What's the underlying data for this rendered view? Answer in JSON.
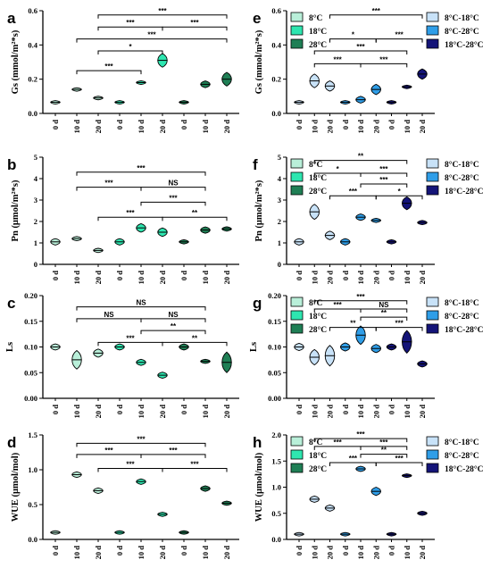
{
  "chart_data": [
    {
      "panel": "a",
      "type": "violin",
      "ylabel": "Gs (mmol/m²*s)",
      "ylim": [
        0,
        0.6
      ],
      "yticks": [
        "0.0",
        "0.2",
        "0.4",
        "0.6"
      ],
      "ytick_values": [
        0,
        0.2,
        0.4,
        0.6
      ],
      "xlabels": [
        "0 d",
        "10 d",
        "20 d",
        "0 d",
        "10 d",
        "20 d",
        "0 d",
        "10 d",
        "20 d"
      ],
      "legend": [
        {
          "name": "8°C",
          "color": "#b9efd9"
        },
        {
          "name": "18°C",
          "color": "#2ee6b0"
        },
        {
          "name": "28°C",
          "color": "#1f7f55"
        }
      ],
      "values": [
        0.065,
        0.14,
        0.09,
        0.065,
        0.18,
        0.31,
        0.065,
        0.17,
        0.2
      ],
      "spread": [
        0.01,
        0.01,
        0.01,
        0.01,
        0.01,
        0.04,
        0.01,
        0.02,
        0.04
      ],
      "colors": [
        "#b9efd9",
        "#b9efd9",
        "#b9efd9",
        "#2ee6b0",
        "#2ee6b0",
        "#2ee6b0",
        "#1f7f55",
        "#1f7f55",
        "#1f7f55"
      ],
      "brackets": [
        {
          "x1": 1,
          "x2": 4,
          "y": 0.25,
          "label": "***"
        },
        {
          "x1": 2,
          "x2": 5,
          "y": 0.365,
          "label": "*"
        },
        {
          "x1": 1,
          "x2": 8,
          "y": 0.435,
          "label": "***"
        },
        {
          "x1": 2,
          "x2": 5,
          "y": 0.505,
          "label": "***"
        },
        {
          "x1": 5,
          "x2": 8,
          "y": 0.505,
          "label": "***"
        },
        {
          "x1": 2,
          "x2": 8,
          "y": 0.575,
          "label": "***"
        }
      ]
    },
    {
      "panel": "e",
      "type": "violin",
      "ylabel": "Gs (mmol/m²*s)",
      "ylim": [
        0,
        0.6
      ],
      "yticks": [
        "0.0",
        "0.2",
        "0.4",
        "0.6"
      ],
      "ytick_values": [
        0,
        0.2,
        0.4,
        0.6
      ],
      "xlabels": [
        "0 d",
        "10 d",
        "20 d",
        "0 d",
        "10 d",
        "20 d",
        "0 d",
        "10 d",
        "20 d"
      ],
      "legend": [
        {
          "name": "8°C-18°C",
          "color": "#c8e2f8"
        },
        {
          "name": "8°C-28°C",
          "color": "#2f9ee8"
        },
        {
          "name": "18°C-28°C",
          "color": "#141478"
        }
      ],
      "values": [
        0.065,
        0.19,
        0.16,
        0.065,
        0.08,
        0.14,
        0.065,
        0.155,
        0.23
      ],
      "spread": [
        0.01,
        0.04,
        0.03,
        0.01,
        0.02,
        0.03,
        0.01,
        0.01,
        0.03
      ],
      "colors": [
        "#c8e2f8",
        "#c8e2f8",
        "#c8e2f8",
        "#2f9ee8",
        "#2f9ee8",
        "#2f9ee8",
        "#141478",
        "#141478",
        "#141478"
      ],
      "brackets": [
        {
          "x1": 1,
          "x2": 4,
          "y": 0.29,
          "label": "***"
        },
        {
          "x1": 4,
          "x2": 7,
          "y": 0.29,
          "label": "***"
        },
        {
          "x1": 1,
          "x2": 7,
          "y": 0.365,
          "label": "***"
        },
        {
          "x1": 2,
          "x2": 5,
          "y": 0.435,
          "label": "*"
        },
        {
          "x1": 5,
          "x2": 8,
          "y": 0.435,
          "label": "***"
        },
        {
          "x1": 2,
          "x2": 8,
          "y": 0.575,
          "label": "***"
        }
      ]
    },
    {
      "panel": "b",
      "type": "violin",
      "ylabel": "Pn (μmol/m²*s)",
      "ylim": [
        0,
        5
      ],
      "yticks": [
        "0",
        "1",
        "2",
        "3",
        "4",
        "5"
      ],
      "ytick_values": [
        0,
        1,
        2,
        3,
        4,
        5
      ],
      "xlabels": [
        "0 d",
        "10 d",
        "20 d",
        "0 d",
        "10 d",
        "20 d",
        "0 d",
        "10 d",
        "20 d"
      ],
      "legend": [
        {
          "name": "8°C",
          "color": "#b9efd9"
        },
        {
          "name": "18°C",
          "color": "#2ee6b0"
        },
        {
          "name": "28°C",
          "color": "#1f7f55"
        }
      ],
      "values": [
        1.05,
        1.2,
        0.65,
        1.05,
        1.7,
        1.5,
        1.05,
        1.6,
        1.65
      ],
      "spread": [
        0.15,
        0.1,
        0.1,
        0.15,
        0.2,
        0.2,
        0.1,
        0.15,
        0.1
      ],
      "colors": [
        "#b9efd9",
        "#b9efd9",
        "#b9efd9",
        "#2ee6b0",
        "#2ee6b0",
        "#2ee6b0",
        "#1f7f55",
        "#1f7f55",
        "#1f7f55"
      ],
      "brackets": [
        {
          "x1": 2,
          "x2": 5,
          "y": 2.2,
          "label": "***"
        },
        {
          "x1": 5,
          "x2": 8,
          "y": 2.2,
          "label": "**"
        },
        {
          "x1": 4,
          "x2": 7,
          "y": 2.9,
          "label": "***"
        },
        {
          "x1": 1,
          "x2": 4,
          "y": 3.6,
          "label": "***"
        },
        {
          "x1": 4,
          "x2": 7,
          "y": 3.6,
          "label": "NS"
        },
        {
          "x1": 1,
          "x2": 7,
          "y": 4.3,
          "label": "***"
        }
      ]
    },
    {
      "panel": "f",
      "type": "violin",
      "ylabel": "Pn (μmol/m²*s)",
      "ylim": [
        0,
        5
      ],
      "yticks": [
        "0",
        "1",
        "2",
        "3",
        "4",
        "5"
      ],
      "ytick_values": [
        0,
        1,
        2,
        3,
        4,
        5
      ],
      "xlabels": [
        "0 d",
        "10 d",
        "20 d",
        "0 d",
        "10 d",
        "20 d",
        "0 d",
        "10 d",
        "20 d"
      ],
      "legend": [
        {
          "name": "8°C-18°C",
          "color": "#c8e2f8"
        },
        {
          "name": "8°C-28°C",
          "color": "#2f9ee8"
        },
        {
          "name": "18°C-28°C",
          "color": "#141478"
        }
      ],
      "values": [
        1.05,
        2.45,
        1.35,
        1.05,
        2.2,
        2.05,
        1.05,
        2.85,
        1.95
      ],
      "spread": [
        0.15,
        0.35,
        0.2,
        0.15,
        0.15,
        0.1,
        0.1,
        0.3,
        0.1
      ],
      "colors": [
        "#c8e2f8",
        "#c8e2f8",
        "#c8e2f8",
        "#2f9ee8",
        "#2f9ee8",
        "#2f9ee8",
        "#141478",
        "#141478",
        "#141478"
      ],
      "brackets": [
        {
          "x1": 2,
          "x2": 5,
          "y": 3.2,
          "label": "***"
        },
        {
          "x1": 5,
          "x2": 8,
          "y": 3.2,
          "label": "*"
        },
        {
          "x1": 4,
          "x2": 7,
          "y": 3.75,
          "label": "***"
        },
        {
          "x1": 1,
          "x2": 4,
          "y": 4.25,
          "label": "*"
        },
        {
          "x1": 4,
          "x2": 7,
          "y": 4.25,
          "label": "***"
        },
        {
          "x1": 1,
          "x2": 7,
          "y": 4.85,
          "label": "**"
        }
      ]
    },
    {
      "panel": "c",
      "type": "violin",
      "ylabel": "Ls",
      "ylim": [
        0,
        0.2
      ],
      "yticks": [
        "0.00",
        "0.05",
        "0.10",
        "0.15",
        "0.20"
      ],
      "ytick_values": [
        0,
        0.05,
        0.1,
        0.15,
        0.2
      ],
      "xlabels": [
        "0 d",
        "10 d",
        "20 d",
        "0 d",
        "10 d",
        "20 d",
        "0 d",
        "10 d",
        "20 d"
      ],
      "legend": [
        {
          "name": "8°C",
          "color": "#b9efd9"
        },
        {
          "name": "18°C",
          "color": "#2ee6b0"
        },
        {
          "name": "28°C",
          "color": "#1f7f55"
        }
      ],
      "values": [
        0.1,
        0.075,
        0.088,
        0.1,
        0.07,
        0.045,
        0.1,
        0.072,
        0.07
      ],
      "spread": [
        0.006,
        0.018,
        0.008,
        0.006,
        0.006,
        0.006,
        0.006,
        0.004,
        0.02
      ],
      "colors": [
        "#b9efd9",
        "#b9efd9",
        "#b9efd9",
        "#2ee6b0",
        "#2ee6b0",
        "#2ee6b0",
        "#1f7f55",
        "#1f7f55",
        "#1f7f55"
      ],
      "brackets": [
        {
          "x1": 2,
          "x2": 5,
          "y": 0.109,
          "label": "***"
        },
        {
          "x1": 5,
          "x2": 8,
          "y": 0.109,
          "label": "**"
        },
        {
          "x1": 4,
          "x2": 7,
          "y": 0.132,
          "label": "**"
        },
        {
          "x1": 1,
          "x2": 4,
          "y": 0.155,
          "label": "NS"
        },
        {
          "x1": 4,
          "x2": 7,
          "y": 0.155,
          "label": "NS"
        },
        {
          "x1": 1,
          "x2": 7,
          "y": 0.178,
          "label": "NS"
        }
      ]
    },
    {
      "panel": "g",
      "type": "violin",
      "ylabel": "Ls",
      "ylim": [
        0,
        0.2
      ],
      "yticks": [
        "0.00",
        "0.05",
        "0.10",
        "0.15",
        "0.20"
      ],
      "ytick_values": [
        0,
        0.05,
        0.1,
        0.15,
        0.2
      ],
      "xlabels": [
        "0 d",
        "10 d",
        "20 d",
        "0 d",
        "10 d",
        "20 d",
        "0 d",
        "10 d",
        "20 d"
      ],
      "legend": [
        {
          "name": "8°C-18°C",
          "color": "#c8e2f8"
        },
        {
          "name": "8°C-28°C",
          "color": "#2f9ee8"
        },
        {
          "name": "18°C-28°C",
          "color": "#141478"
        }
      ],
      "values": [
        0.1,
        0.08,
        0.083,
        0.1,
        0.123,
        0.097,
        0.1,
        0.11,
        0.067
      ],
      "spread": [
        0.007,
        0.015,
        0.02,
        0.008,
        0.018,
        0.008,
        0.006,
        0.022,
        0.006
      ],
      "colors": [
        "#c8e2f8",
        "#c8e2f8",
        "#c8e2f8",
        "#2f9ee8",
        "#2f9ee8",
        "#2f9ee8",
        "#141478",
        "#141478",
        "#141478"
      ],
      "brackets": [
        {
          "x1": 2,
          "x2": 5,
          "y": 0.138,
          "label": "**"
        },
        {
          "x1": 5,
          "x2": 8,
          "y": 0.138,
          "label": "***"
        },
        {
          "x1": 4,
          "x2": 7,
          "y": 0.158,
          "label": "**"
        },
        {
          "x1": 1,
          "x2": 4,
          "y": 0.174,
          "label": "***"
        },
        {
          "x1": 4,
          "x2": 7,
          "y": 0.174,
          "label": "NS"
        },
        {
          "x1": 1,
          "x2": 7,
          "y": 0.19,
          "label": "***"
        }
      ]
    },
    {
      "panel": "d",
      "type": "violin",
      "ylabel": "WUE (μmol/mol)",
      "ylim": [
        0,
        1.5
      ],
      "yticks": [
        "0.0",
        "0.5",
        "1.0",
        "1.5"
      ],
      "ytick_values": [
        0,
        0.5,
        1,
        1.5
      ],
      "xlabels": [
        "0 d",
        "10 d",
        "20 d",
        "0 d",
        "10 d",
        "20 d",
        "0 d",
        "10 d",
        "20 d"
      ],
      "legend": [
        {
          "name": "8°C",
          "color": "#b9efd9"
        },
        {
          "name": "18°C",
          "color": "#2ee6b0"
        },
        {
          "name": "28°C",
          "color": "#1f7f55"
        }
      ],
      "values": [
        0.1,
        0.93,
        0.7,
        0.1,
        0.83,
        0.36,
        0.1,
        0.73,
        0.52
      ],
      "spread": [
        0.02,
        0.04,
        0.04,
        0.02,
        0.04,
        0.03,
        0.01,
        0.04,
        0.03
      ],
      "colors": [
        "#b9efd9",
        "#b9efd9",
        "#b9efd9",
        "#2ee6b0",
        "#2ee6b0",
        "#2ee6b0",
        "#1f7f55",
        "#1f7f55",
        "#1f7f55"
      ],
      "brackets": [
        {
          "x1": 2,
          "x2": 5,
          "y": 1.02,
          "label": "***"
        },
        {
          "x1": 5,
          "x2": 8,
          "y": 1.02,
          "label": "***"
        },
        {
          "x1": 1,
          "x2": 4,
          "y": 1.22,
          "label": "***"
        },
        {
          "x1": 4,
          "x2": 7,
          "y": 1.22,
          "label": "***"
        },
        {
          "x1": 1,
          "x2": 7,
          "y": 1.38,
          "label": "***"
        }
      ]
    },
    {
      "panel": "h",
      "type": "violin",
      "ylabel": "WUE (μmol/mol)",
      "ylim": [
        0,
        2.0
      ],
      "yticks": [
        "0.0",
        "0.5",
        "1.0",
        "1.5",
        "2.0"
      ],
      "ytick_values": [
        0,
        0.5,
        1,
        1.5,
        2
      ],
      "xlabels": [
        "0 d",
        "10 d",
        "20 d",
        "0 d",
        "10 d",
        "20 d",
        "0 d",
        "10 d",
        "20 d"
      ],
      "legend": [
        {
          "name": "8°C-18°C",
          "color": "#c8e2f8"
        },
        {
          "name": "8°C-28°C",
          "color": "#2f9ee8"
        },
        {
          "name": "18°C-28°C",
          "color": "#141478"
        }
      ],
      "values": [
        0.1,
        0.77,
        0.6,
        0.1,
        1.35,
        0.92,
        0.1,
        1.22,
        0.5
      ],
      "spread": [
        0.02,
        0.06,
        0.06,
        0.02,
        0.05,
        0.08,
        0.02,
        0.03,
        0.04
      ],
      "colors": [
        "#c8e2f8",
        "#c8e2f8",
        "#c8e2f8",
        "#2f9ee8",
        "#2f9ee8",
        "#2f9ee8",
        "#141478",
        "#141478",
        "#141478"
      ],
      "brackets": [
        {
          "x1": 2,
          "x2": 5,
          "y": 1.47,
          "label": "***"
        },
        {
          "x1": 5,
          "x2": 8,
          "y": 1.47,
          "label": "***"
        },
        {
          "x1": 4,
          "x2": 7,
          "y": 1.63,
          "label": "**"
        },
        {
          "x1": 1,
          "x2": 4,
          "y": 1.78,
          "label": "***"
        },
        {
          "x1": 4,
          "x2": 7,
          "y": 1.78,
          "label": "***"
        },
        {
          "x1": 1,
          "x2": 7,
          "y": 1.93,
          "label": "***"
        }
      ]
    }
  ]
}
